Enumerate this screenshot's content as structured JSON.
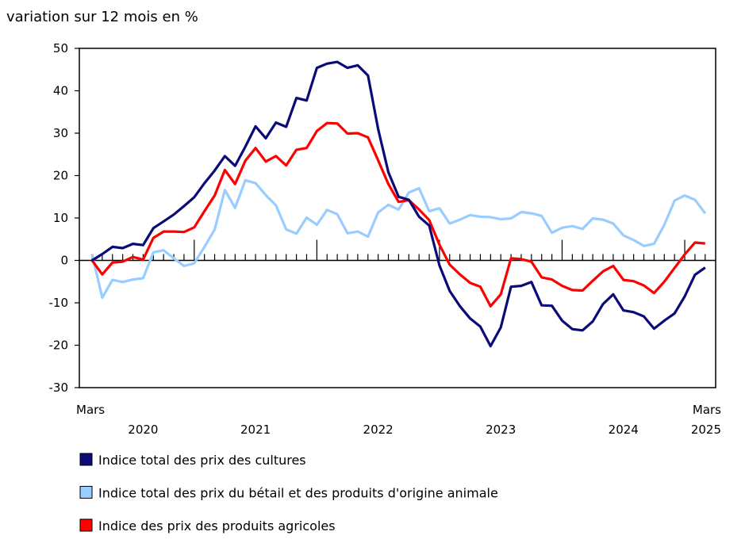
{
  "chart_data": {
    "type": "line",
    "title": "variation sur 12 mois en %",
    "ylabel": "variation sur 12 mois en %",
    "ylim": [
      -30,
      50
    ],
    "yticks": [
      -30,
      -20,
      -10,
      0,
      10,
      20,
      30,
      40,
      50
    ],
    "x_start": "2020-03",
    "x_end": "2025-03",
    "x_start_label": "Mars",
    "x_end_label": "Mars",
    "year_labels": [
      "2020",
      "2021",
      "2022",
      "2023",
      "2024",
      "2025"
    ],
    "grid": false,
    "legend_placement": "bottom",
    "series": [
      {
        "name": "Indice total des prix des cultures",
        "color": "#0a0a78",
        "values": [
          0,
          1.5,
          3.2,
          2.9,
          3.9,
          3.6,
          7.6,
          9.2,
          10.8,
          12.8,
          14.9,
          18.2,
          21.2,
          24.6,
          22.3,
          26.8,
          31.6,
          28.8,
          32.5,
          31.5,
          38.3,
          37.7,
          45.4,
          46.4,
          46.8,
          45.4,
          46,
          43.6,
          31,
          20.8,
          15,
          14.3,
          10.3,
          8.2,
          -1.2,
          -7.2,
          -10.8,
          -13.7,
          -15.6,
          -20.2,
          -15.8,
          -6.2,
          -6.0,
          -5.1,
          -10.6,
          -10.7,
          -14.2,
          -16.2,
          -16.5,
          -14.4,
          -10.3,
          -8.0,
          -11.8,
          -12.2,
          -13.2,
          -16.1,
          -14.2,
          -12.5,
          -8.5,
          -3.4,
          -1.7
        ]
      },
      {
        "name": "Indice total des prix du bétail et des produits d'origine animale",
        "color": "#99ccff",
        "values": [
          1.5,
          -8.8,
          -4.6,
          -5.1,
          -4.5,
          -4.2,
          1.9,
          2.4,
          0.5,
          -1.3,
          -0.7,
          3.2,
          7.3,
          16.6,
          12.4,
          18.9,
          18.2,
          15.4,
          13.0,
          7.3,
          6.3,
          10.1,
          8.4,
          11.9,
          10.9,
          6.4,
          6.8,
          5.6,
          11.3,
          13.1,
          12.0,
          16,
          17,
          11.6,
          12.3,
          8.7,
          9.6,
          10.7,
          10.3,
          10.2,
          9.7,
          9.9,
          11.4,
          11.1,
          10.5,
          6.5,
          7.7,
          8.1,
          7.4,
          9.9,
          9.6,
          8.7,
          5.9,
          4.8,
          3.4,
          3.9,
          8.4,
          14.1,
          15.3,
          14.3,
          11.1
        ]
      },
      {
        "name": "Indice des prix des produits agricoles",
        "color": "#ff0000",
        "values": [
          0,
          -3.3,
          -0.5,
          -0.3,
          0.8,
          0.2,
          5.3,
          6.8,
          6.8,
          6.7,
          7.8,
          11.6,
          15.3,
          21.3,
          18.0,
          23.5,
          26.5,
          23.3,
          24.6,
          22.4,
          26.1,
          26.5,
          30.5,
          32.4,
          32.3,
          29.9,
          30,
          29,
          23.6,
          18,
          13.8,
          14.2,
          12,
          9.5,
          3.7,
          -1.0,
          -3.3,
          -5.3,
          -6.2,
          -10.8,
          -8,
          0.5,
          0.3,
          -0.3,
          -4.0,
          -4.5,
          -6.0,
          -7.0,
          -7.1,
          -4.8,
          -2.6,
          -1.3,
          -4.6,
          -4.9,
          -5.9,
          -7.7,
          -5.0,
          -1.8,
          1.4,
          4.2,
          4.0
        ]
      }
    ]
  }
}
